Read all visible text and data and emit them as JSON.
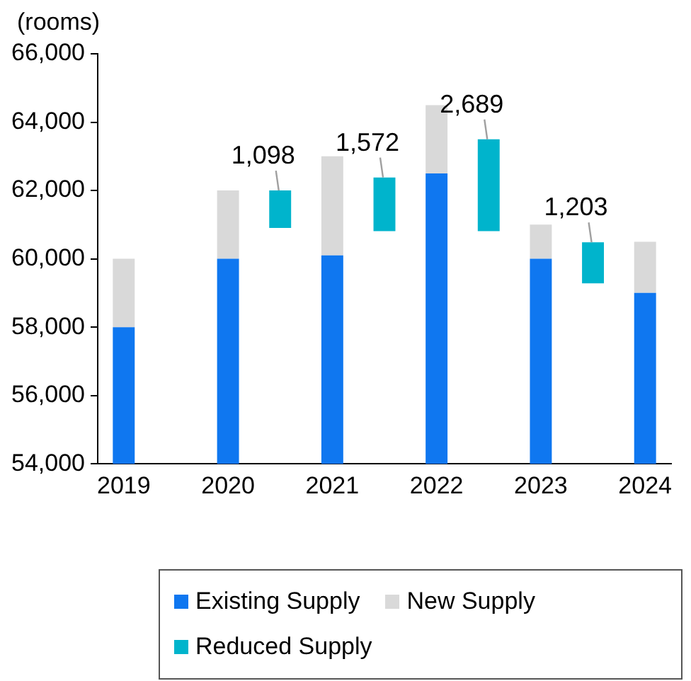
{
  "chart_data": {
    "type": "bar",
    "ylabel": "(rooms)",
    "stacked": true,
    "grid": false,
    "legend": "bottom",
    "categories": [
      "2019",
      null,
      "2020",
      null,
      "2021",
      null,
      "2022",
      null,
      "2023",
      null,
      "2024"
    ],
    "ylim": [
      54000,
      66000
    ],
    "yticks": [
      {
        "value": 54000,
        "label": "54,000"
      },
      {
        "value": 56000,
        "label": "56,000"
      },
      {
        "value": 58000,
        "label": "58,000"
      },
      {
        "value": 60000,
        "label": "60,000"
      },
      {
        "value": 62000,
        "label": "62,000"
      },
      {
        "value": 64000,
        "label": "64,000"
      },
      {
        "value": 66000,
        "label": "66,000"
      }
    ],
    "series": [
      {
        "name": "Existing Supply",
        "color": "#0f77f0",
        "values": [
          58000,
          null,
          60000,
          null,
          60100,
          null,
          62500,
          null,
          60000,
          null,
          59000
        ]
      },
      {
        "name": "New Supply",
        "color": "#d9d9d9",
        "values": [
          2000,
          null,
          2000,
          null,
          2900,
          null,
          2000,
          null,
          1000,
          null,
          1500
        ],
        "base": [
          58000,
          null,
          60000,
          null,
          60100,
          null,
          62500,
          null,
          60000,
          null,
          59000
        ]
      },
      {
        "name": "Reduced Supply",
        "type": "bar",
        "color": "#00b4cc",
        "values": [
          null,
          null,
          null,
          1098,
          null,
          1572,
          null,
          2689,
          null,
          1203,
          null
        ],
        "base": [
          null,
          null,
          null,
          60902,
          null,
          60810,
          null,
          60810,
          null,
          59280,
          null
        ],
        "value_labels": [
          null,
          null,
          null,
          "1,098",
          null,
          "1,572",
          null,
          "2,689",
          null,
          "1,203",
          null
        ]
      }
    ]
  }
}
